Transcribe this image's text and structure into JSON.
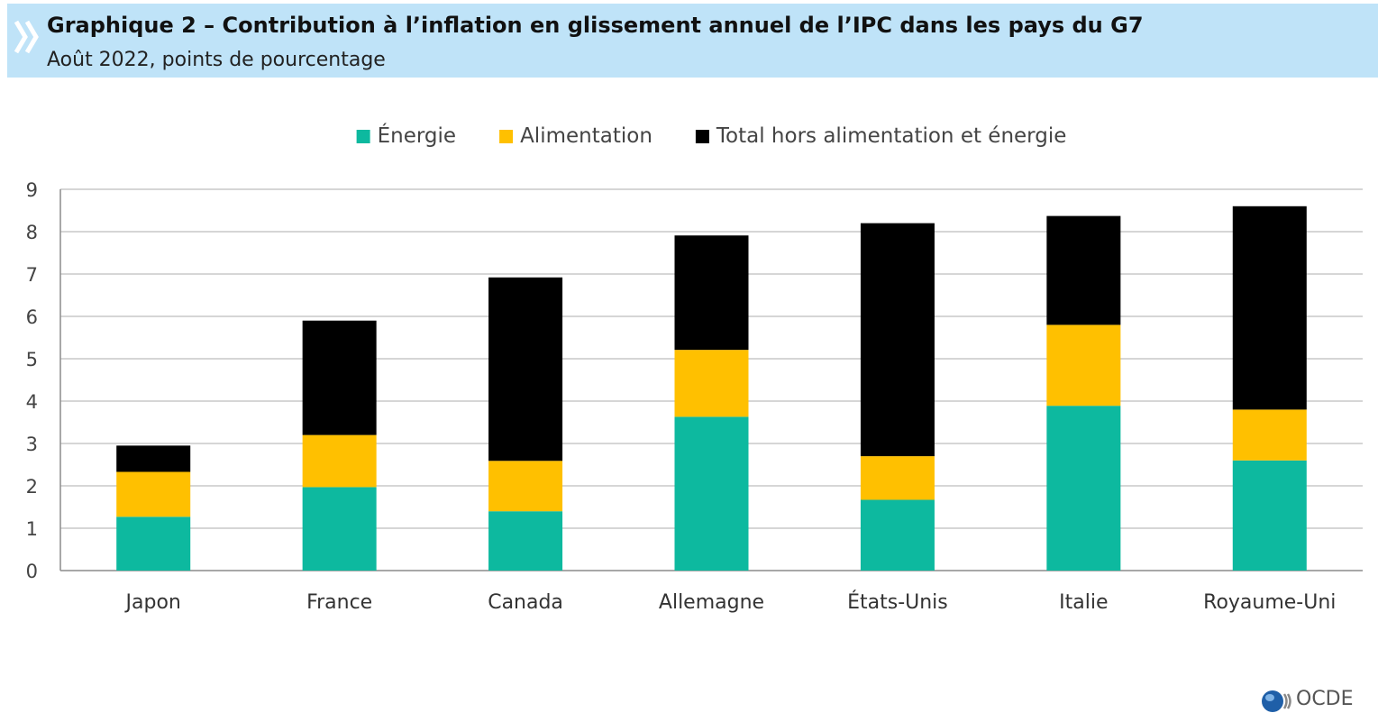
{
  "header": {
    "title": "Graphique 2 – Contribution à l’inflation en glissement annuel de l’IPC dans les pays du G7",
    "subtitle": "Août 2022, points de pourcentage"
  },
  "logo": {
    "text": "OCDE",
    "icon": "oecd-globe-icon"
  },
  "chart_data": {
    "type": "bar",
    "stacked": true,
    "title": "Graphique 2 – Contribution à l’inflation en glissement annuel de l’IPC dans les pays du G7",
    "subtitle": "Août 2022, points de pourcentage",
    "xlabel": "",
    "ylabel": "",
    "ylim": [
      0,
      9
    ],
    "yticks": [
      0,
      1,
      2,
      3,
      4,
      5,
      6,
      7,
      8,
      9
    ],
    "grid": true,
    "legend_position": "top-center",
    "categories": [
      "Japon",
      "France",
      "Canada",
      "Allemagne",
      "États-Unis",
      "Italie",
      "Royaume-Uni"
    ],
    "series": [
      {
        "name": "Énergie",
        "color": "#0db99f",
        "values": [
          1.27,
          1.97,
          1.4,
          3.63,
          1.67,
          3.89,
          2.6
        ]
      },
      {
        "name": "Alimentation",
        "color": "#ffc000",
        "values": [
          1.06,
          1.23,
          1.19,
          1.58,
          1.03,
          1.91,
          1.2
        ]
      },
      {
        "name": "Total hors alimentation et énergie",
        "color": "#000000",
        "values": [
          0.62,
          2.7,
          4.33,
          2.7,
          5.5,
          2.57,
          4.8
        ]
      }
    ]
  }
}
